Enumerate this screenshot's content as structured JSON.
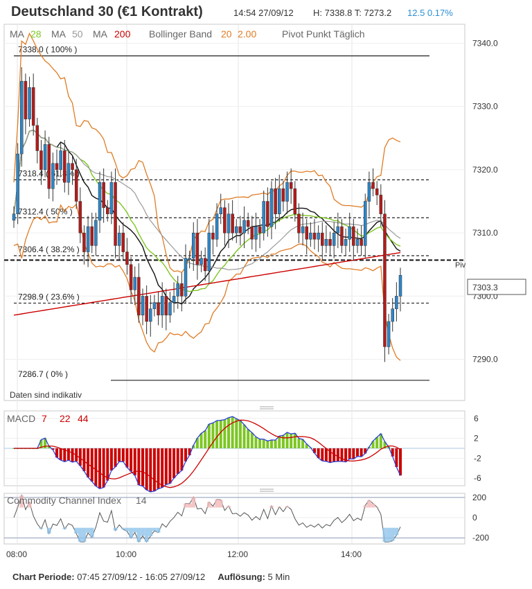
{
  "header": {
    "title": "Deutschland 30 (€1 Kontrakt)",
    "time": "14:54 27/09/12",
    "high_low": "H: 7338.8  T: 7273.2",
    "change": "12.5  0.17%"
  },
  "legend": {
    "ma_label": "MA",
    "ma1": "28",
    "ma2": "50",
    "ma3": "200",
    "bollinger_label": "Bollinger Band",
    "bb_period": "20",
    "bb_dev": "2.00",
    "pivot_label": "Pivot Punkt  Täglich"
  },
  "colors": {
    "ma28": "#7dc623",
    "ma50": "#999999",
    "ma200": "#cc0000",
    "bollinger": "#e07b23",
    "up": "#2e86c8",
    "down": "#b31b1b",
    "macd_pos": "#7dc623",
    "macd_neg": "#cc0000",
    "signal": "#cc0000",
    "macd_line": "#2a3fd6",
    "cci_fill_pos": "#f2b8b8",
    "cci_fill_neg": "#8fc3ea"
  },
  "notes": {
    "disclaimer": "Daten sind indikativ",
    "pivot_tag": "Piv",
    "current_price": "7303.3"
  },
  "chart_data": [
    {
      "type": "candlestick",
      "name": "price",
      "ylim": [
        7283.5,
        7343.0
      ],
      "yticks": [
        "7340.0",
        "7330.0",
        "7320.0",
        "7310.0",
        "7300.0",
        "7290.0"
      ],
      "ytick_values": [
        7340,
        7330,
        7320,
        7310,
        7300,
        7290
      ],
      "xticks": [
        "08:00",
        "10:00",
        "12:00",
        "14:00"
      ],
      "fib_levels": [
        {
          "label": "7338.0 ( 100% )",
          "value": 7338.0
        },
        {
          "label": "7318.4 ( 61.8% )",
          "value": 7318.4
        },
        {
          "label": "7312.4 ( 50% )",
          "value": 7312.4
        },
        {
          "label": "7306.4 ( 38.2% )",
          "value": 7306.4
        },
        {
          "label": "7298.9 ( 23.6% )",
          "value": 7298.9
        },
        {
          "label": "7286.7 ( 0% )",
          "value": 7286.7
        }
      ],
      "pivot": 7305.7,
      "current": 7303.3,
      "closes": [
        7313,
        7322.5,
        7334,
        7328,
        7333,
        7327,
        7323,
        7320,
        7324,
        7317,
        7321,
        7320,
        7323,
        7318,
        7321,
        7320,
        7315,
        7310,
        7307,
        7311,
        7308,
        7312,
        7318,
        7314,
        7313,
        7318,
        7308,
        7310,
        7307,
        7305,
        7301,
        7303,
        7297,
        7300,
        7296,
        7298,
        7299,
        7297,
        7300,
        7297,
        7299,
        7300,
        7302,
        7300,
        7306,
        7306,
        7310,
        7305,
        7306,
        7304,
        7310,
        7309,
        7313,
        7314,
        7310,
        7313,
        7310,
        7311,
        7310,
        7312,
        7311,
        7309,
        7311,
        7310,
        7315,
        7311,
        7317,
        7313,
        7317,
        7315,
        7318,
        7317,
        7313,
        7310,
        7311,
        7309,
        7310,
        7309,
        7310,
        7308,
        7309,
        7308,
        7310,
        7311,
        7308,
        7309,
        7311,
        7308,
        7309,
        7308,
        7315,
        7318,
        7317,
        7316,
        7313,
        7292,
        7296,
        7298,
        7300,
        7303.3
      ]
    },
    {
      "type": "bar",
      "name": "MACD",
      "params": [
        "7",
        "22",
        "44"
      ],
      "yticks": [
        "6",
        "2",
        "-2",
        "-6"
      ],
      "ytick_values": [
        6,
        2,
        -2,
        -6
      ],
      "ylim": [
        -7.5,
        7.5
      ]
    },
    {
      "type": "line",
      "name": "Commodity Channel Index",
      "param": "14",
      "yticks": [
        "200",
        "0",
        "-200"
      ],
      "ytick_values": [
        200,
        0,
        -200
      ],
      "ylim": [
        -260,
        240
      ]
    }
  ],
  "footer": {
    "period_label": "Chart Periode:",
    "period_value": "07:45 27/09/12 - 16:05 27/09/12",
    "resolution_label": "Auflösung:",
    "resolution_value": "5 Min"
  }
}
